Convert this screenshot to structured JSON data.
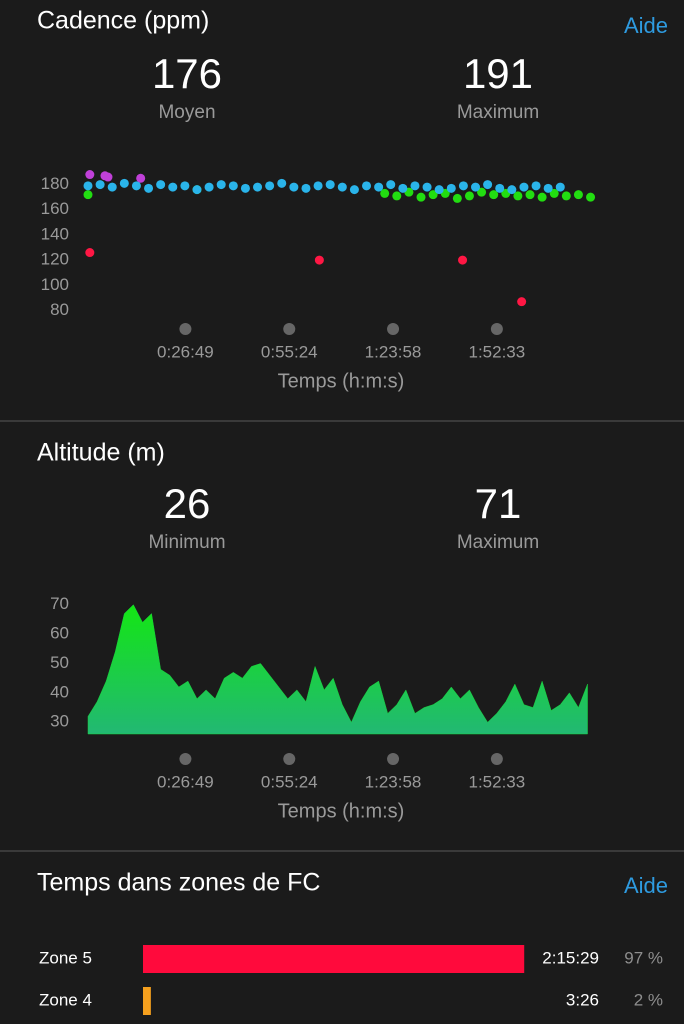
{
  "chart_data": [
    {
      "type": "scatter",
      "title": "Cadence (ppm)",
      "xlabel": "Temps (h:m:s)",
      "xlim": [
        0,
        8390
      ],
      "ylim": [
        74,
        190
      ],
      "xticks": [
        {
          "value": 1609,
          "label": "0:26:49"
        },
        {
          "value": 3324,
          "label": "0:55:24"
        },
        {
          "value": 5038,
          "label": "1:23:58"
        },
        {
          "value": 6753,
          "label": "1:52:33"
        }
      ],
      "yticks": [
        80,
        100,
        120,
        140,
        160,
        180
      ],
      "series": [
        {
          "color": "#22dd11",
          "x": [
            0,
            1800,
            4900,
            5100,
            5300,
            5500,
            5700,
            5900,
            6100,
            6300,
            6500,
            6700,
            6900,
            7100,
            7300,
            7500,
            7700,
            7900,
            8100,
            8300
          ],
          "values": [
            172,
            176,
            173,
            171,
            174,
            170,
            172,
            173,
            169,
            171,
            174,
            172,
            173,
            171,
            172,
            170,
            173,
            171,
            172,
            170
          ]
        },
        {
          "color": "#c040d8",
          "x": [
            30,
            280,
            330,
            870
          ],
          "values": [
            188,
            187,
            186,
            185
          ]
        },
        {
          "color": "#2ab4ea",
          "x": [
            0,
            200,
            400,
            600,
            800,
            1000,
            1200,
            1400,
            1600,
            1800,
            2000,
            2200,
            2400,
            2600,
            2800,
            3000,
            3200,
            3400,
            3600,
            3800,
            4000,
            4200,
            4400,
            4600,
            4800,
            5000,
            5200,
            5400,
            5600,
            5800,
            6000,
            6200,
            6400,
            6600,
            6800,
            7000,
            7200,
            7400,
            7600,
            7800
          ],
          "values": [
            179,
            180,
            178,
            181,
            179,
            177,
            180,
            178,
            179,
            176,
            178,
            180,
            179,
            177,
            178,
            179,
            181,
            178,
            177,
            179,
            180,
            178,
            176,
            179,
            178,
            180,
            177,
            179,
            178,
            176,
            177,
            179,
            178,
            180,
            177,
            176,
            178,
            179,
            177,
            178
          ]
        },
        {
          "color": "#ff1744",
          "x": [
            30,
            3821,
            6186,
            7162
          ],
          "values": [
            126,
            120,
            120,
            87
          ]
        }
      ]
    },
    {
      "type": "area",
      "title": "Altitude (m)",
      "xlabel": "Temps (h:m:s)",
      "color": "#19d23c",
      "xlim": [
        0,
        8390
      ],
      "ylim": [
        26,
        74
      ],
      "xticks": [
        {
          "value": 1609,
          "label": "0:26:49"
        },
        {
          "value": 3324,
          "label": "0:55:24"
        },
        {
          "value": 5038,
          "label": "1:23:58"
        },
        {
          "value": 6753,
          "label": "1:52:33"
        }
      ],
      "yticks": [
        30,
        40,
        50,
        60,
        70
      ],
      "x": [
        0,
        150,
        300,
        450,
        600,
        750,
        900,
        1050,
        1200,
        1350,
        1500,
        1650,
        1800,
        1950,
        2100,
        2250,
        2400,
        2550,
        2700,
        2850,
        3000,
        3150,
        3300,
        3450,
        3600,
        3750,
        3900,
        4050,
        4200,
        4350,
        4500,
        4650,
        4800,
        4950,
        5100,
        5250,
        5400,
        5550,
        5700,
        5850,
        6000,
        6150,
        6300,
        6450,
        6600,
        6750,
        6900,
        7050,
        7200,
        7350,
        7500,
        7650,
        7800,
        7950,
        8100,
        8250
      ],
      "values": [
        32,
        37,
        44,
        54,
        67,
        70,
        64,
        67,
        48,
        46,
        42,
        44,
        38,
        41,
        38,
        45,
        47,
        45,
        49,
        50,
        46,
        42,
        38,
        41,
        37,
        49,
        41,
        45,
        36,
        30,
        37,
        42,
        44,
        33,
        36,
        41,
        33,
        35,
        36,
        38,
        42,
        38,
        41,
        35,
        30,
        33,
        37,
        43,
        36,
        35,
        44,
        34,
        36,
        40,
        35,
        43
      ]
    }
  ],
  "stats": [
    [
      {
        "value": "176",
        "label": "Moyen"
      },
      {
        "value": "191",
        "label": "Maximum"
      }
    ],
    [
      {
        "value": "26",
        "label": "Minimum"
      },
      {
        "value": "71",
        "label": "Maximum"
      }
    ]
  ],
  "help": "Aide",
  "zones": {
    "title": "Temps dans zones de FC",
    "rows": [
      {
        "label": "Zone 5",
        "time": "2:15:29",
        "percent": 97,
        "percent_label": "97 %",
        "color": "#ff0a3c"
      },
      {
        "label": "Zone 4",
        "time": "3:26",
        "percent": 2,
        "percent_label": "2 %",
        "color": "#f5a01e"
      }
    ]
  }
}
